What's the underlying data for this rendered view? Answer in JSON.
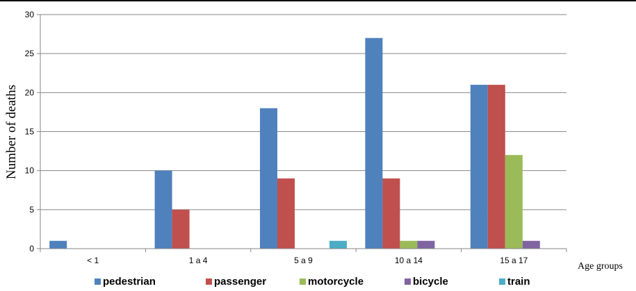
{
  "chart_data": {
    "type": "bar",
    "categories": [
      "< 1",
      "1 a 4",
      "5 a 9",
      "10 a 14",
      "15 a 17"
    ],
    "series": [
      {
        "name": "pedestrian",
        "color": "#4F81BD",
        "values": [
          1,
          10,
          18,
          27,
          21
        ]
      },
      {
        "name": "passenger",
        "color": "#C0504D",
        "values": [
          0,
          5,
          9,
          9,
          21
        ]
      },
      {
        "name": "motorcycle",
        "color": "#9BBB59",
        "values": [
          0,
          0,
          0,
          1,
          12
        ]
      },
      {
        "name": "bicycle",
        "color": "#8064A2",
        "values": [
          0,
          0,
          0,
          1,
          1
        ]
      },
      {
        "name": "train",
        "color": "#4BACC6",
        "values": [
          0,
          0,
          1,
          0,
          0
        ]
      }
    ],
    "title": "",
    "xlabel": "Age groups",
    "ylabel": "Number of deaths",
    "ylim": [
      0,
      30
    ],
    "yticks": [
      0,
      5,
      10,
      15,
      20,
      25,
      30
    ],
    "grid": "horizontal",
    "legend": "bottom"
  }
}
